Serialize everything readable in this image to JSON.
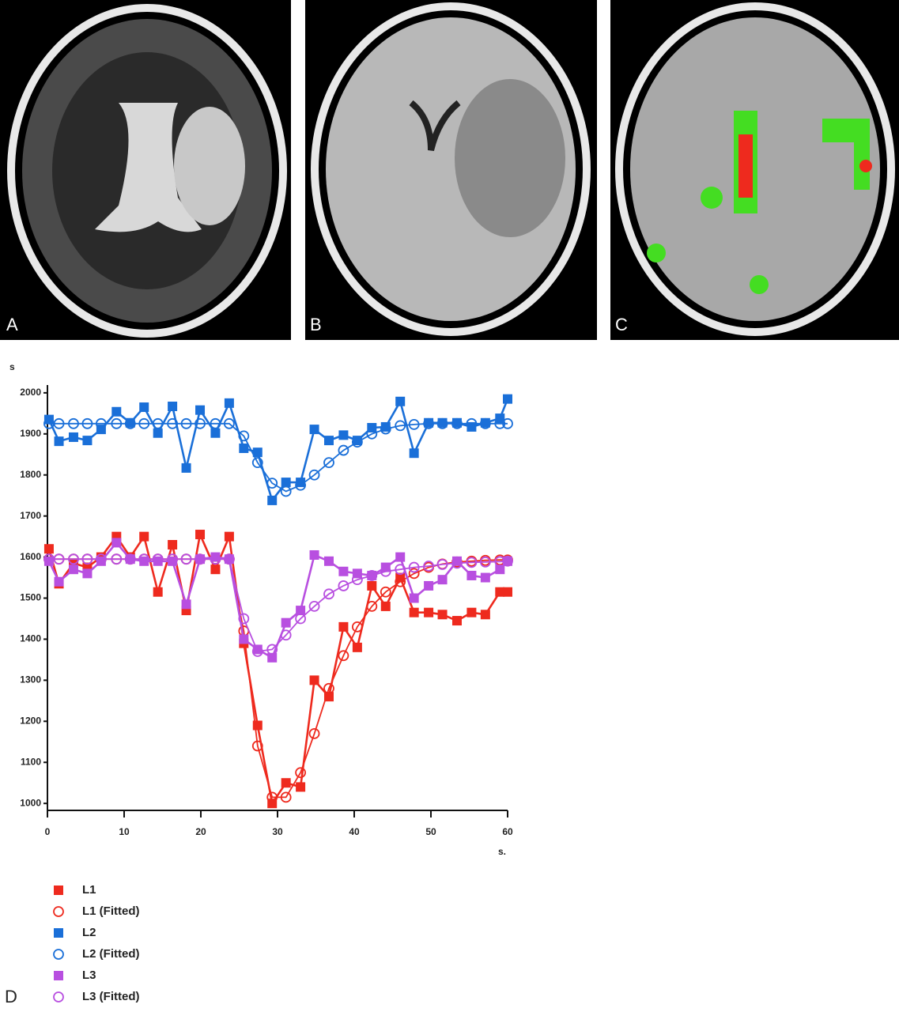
{
  "panels": [
    "A",
    "B",
    "C"
  ],
  "chart_data": {
    "type": "line",
    "panel_label": "D",
    "y_label": "s",
    "x_label": "s.",
    "xlim": [
      0,
      60
    ],
    "ylim": [
      983,
      2019
    ],
    "xticks": [
      0,
      10,
      20,
      30,
      40,
      50,
      60
    ],
    "yticks": [
      1000,
      1100,
      1200,
      1300,
      1400,
      1500,
      1600,
      1700,
      1800,
      1900,
      2000
    ],
    "x": [
      0.2,
      1.5,
      3.4,
      5.2,
      7,
      9,
      10.8,
      12.6,
      14.4,
      16.3,
      18.1,
      19.9,
      21.9,
      23.7,
      25.6,
      27.4,
      29.3,
      31.1,
      33,
      34.8,
      36.7,
      38.6,
      40.4,
      42.3,
      44.1,
      46,
      47.8,
      49.7,
      51.5,
      53.4,
      55.3,
      57.1,
      59,
      60
    ],
    "series": [
      {
        "name": "L1",
        "color": "#ee2a1e",
        "marker": "square",
        "values": [
          1620,
          1535,
          1585,
          1575,
          1600,
          1650,
          1600,
          1650,
          1515,
          1630,
          1470,
          1655,
          1570,
          1650,
          1390,
          1190,
          1000,
          1050,
          1040,
          1300,
          1260,
          1430,
          1380,
          1530,
          1480,
          1550,
          1465,
          1465,
          1460,
          1445,
          1465,
          1460,
          1515,
          1515
        ]
      },
      {
        "name": "L1 (Fitted)",
        "color": "#ee2a1e",
        "marker": "circle",
        "values": [
          1595,
          1595,
          1595,
          1595,
          1595,
          1595,
          1595,
          1595,
          1595,
          1595,
          1595,
          1595,
          1595,
          1595,
          1420,
          1140,
          1015,
          1015,
          1075,
          1170,
          1280,
          1360,
          1430,
          1480,
          1515,
          1540,
          1560,
          1575,
          1583,
          1588,
          1590,
          1592,
          1593,
          1593
        ]
      },
      {
        "name": "L2",
        "color": "#1a6fd8",
        "marker": "square",
        "values": [
          1935,
          1882,
          1892,
          1884,
          1911,
          1954,
          1927,
          1965,
          1902,
          1967,
          1817,
          1958,
          1902,
          1975,
          1865,
          1855,
          1738,
          1782,
          1782,
          1911,
          1884,
          1897,
          1884,
          1915,
          1917,
          1979,
          1853,
          1927,
          1927,
          1927,
          1917,
          1927,
          1938,
          1985
        ]
      },
      {
        "name": "L2 (Fitted)",
        "color": "#1a6fd8",
        "marker": "circle",
        "values": [
          1925,
          1925,
          1925,
          1925,
          1925,
          1925,
          1925,
          1925,
          1925,
          1925,
          1925,
          1925,
          1925,
          1925,
          1895,
          1830,
          1780,
          1760,
          1775,
          1800,
          1830,
          1860,
          1880,
          1900,
          1912,
          1920,
          1923,
          1925,
          1925,
          1925,
          1925,
          1925,
          1925,
          1925
        ]
      },
      {
        "name": "L3",
        "color": "#b84fe0",
        "marker": "square",
        "values": [
          1590,
          1540,
          1570,
          1560,
          1590,
          1635,
          1595,
          1590,
          1590,
          1590,
          1485,
          1595,
          1600,
          1595,
          1400,
          1375,
          1355,
          1440,
          1470,
          1605,
          1590,
          1565,
          1560,
          1555,
          1575,
          1600,
          1500,
          1530,
          1545,
          1590,
          1555,
          1550,
          1570,
          1590
        ]
      },
      {
        "name": "L3 (Fitted)",
        "color": "#b84fe0",
        "marker": "circle",
        "values": [
          1595,
          1595,
          1595,
          1595,
          1595,
          1595,
          1595,
          1595,
          1595,
          1595,
          1595,
          1595,
          1595,
          1595,
          1450,
          1370,
          1375,
          1410,
          1450,
          1480,
          1510,
          1530,
          1545,
          1555,
          1565,
          1570,
          1575,
          1578,
          1582,
          1585,
          1587,
          1588,
          1589,
          1590
        ]
      }
    ]
  }
}
